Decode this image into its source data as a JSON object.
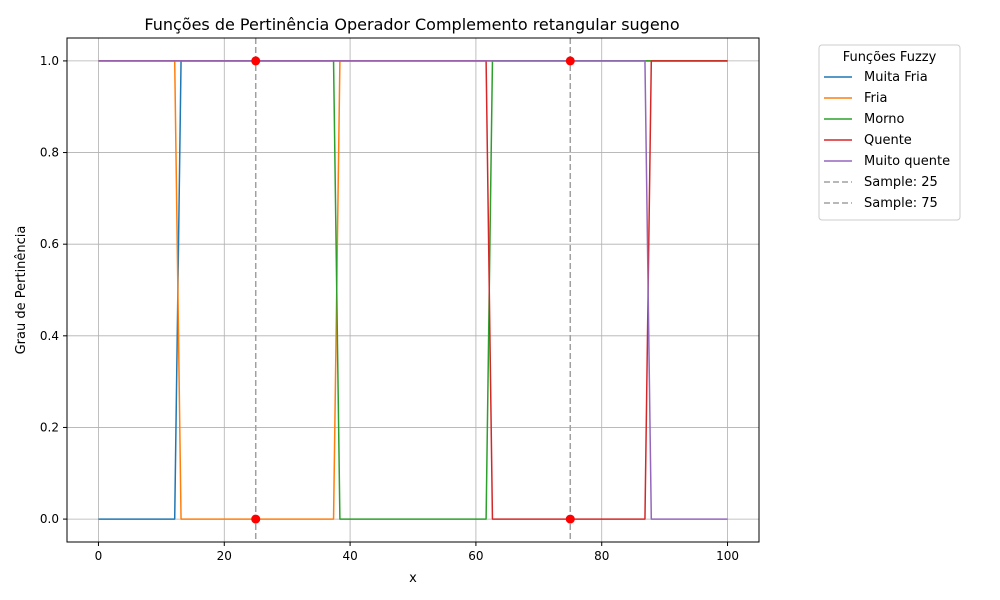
{
  "chart_data": {
    "type": "line",
    "title": "Funções de Pertinência Operador Complemento retangular sugeno",
    "xlabel": "x",
    "ylabel": "Grau de Pertinência",
    "xlim": [
      -5,
      105
    ],
    "ylim": [
      -0.05,
      1.05
    ],
    "xticks": [
      0,
      20,
      40,
      60,
      80,
      100
    ],
    "yticks": [
      0.0,
      0.2,
      0.4,
      0.6,
      0.8,
      1.0
    ],
    "xtick_labels": [
      "0",
      "20",
      "40",
      "60",
      "80",
      "100"
    ],
    "ytick_labels": [
      "0.0",
      "0.2",
      "0.4",
      "0.6",
      "0.8",
      "1.0"
    ],
    "grid": true,
    "legend": {
      "title": "Funções Fuzzy",
      "placement": "outside-top-right"
    },
    "series": [
      {
        "name": "Muita Fria",
        "color": "#1f77b4",
        "style": "solid",
        "x": [
          0,
          12.12,
          13.13,
          100
        ],
        "y": [
          0,
          0,
          1,
          1
        ]
      },
      {
        "name": "Fria",
        "color": "#ff7f0e",
        "style": "solid",
        "x": [
          0,
          12.12,
          13.13,
          37.37,
          38.38,
          100
        ],
        "y": [
          1,
          1,
          0,
          0,
          1,
          1
        ]
      },
      {
        "name": "Morno",
        "color": "#2ca02c",
        "style": "solid",
        "x": [
          0,
          37.37,
          38.38,
          61.62,
          62.63,
          100
        ],
        "y": [
          1,
          1,
          0,
          0,
          1,
          1
        ]
      },
      {
        "name": "Quente",
        "color": "#d62728",
        "style": "solid",
        "x": [
          0,
          61.62,
          62.63,
          86.87,
          87.88,
          100
        ],
        "y": [
          1,
          1,
          0,
          0,
          1,
          1
        ]
      },
      {
        "name": "Muito quente",
        "color": "#9467bd",
        "style": "solid",
        "x": [
          0,
          86.87,
          87.88,
          100
        ],
        "y": [
          1,
          1,
          0,
          0
        ]
      },
      {
        "name": "Sample: 25",
        "color": "#a0a0a0",
        "style": "dashed",
        "vline": 25
      },
      {
        "name": "Sample: 75",
        "color": "#a0a0a0",
        "style": "dashed",
        "vline": 75
      }
    ],
    "points": [
      {
        "x": 25,
        "y": 1,
        "color": "#ff0000"
      },
      {
        "x": 25,
        "y": 0,
        "color": "#ff0000"
      },
      {
        "x": 75,
        "y": 1,
        "color": "#ff0000"
      },
      {
        "x": 75,
        "y": 0,
        "color": "#ff0000"
      }
    ]
  }
}
